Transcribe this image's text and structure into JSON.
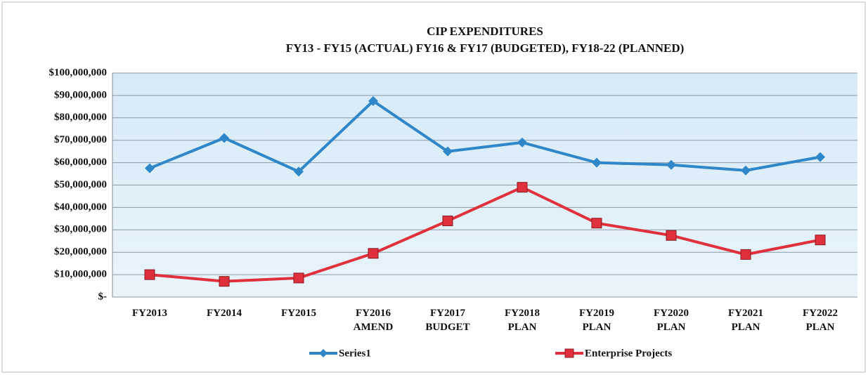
{
  "chart_data": {
    "type": "line",
    "title": "CIP EXPENDITURES",
    "subtitle": "FY13 - FY15 (ACTUAL) FY16 & FY17 (BUDGETED), FY18-22 (PLANNED)",
    "categories": [
      [
        "FY2013"
      ],
      [
        "FY2014"
      ],
      [
        "FY2015"
      ],
      [
        "FY2016",
        "AMEND"
      ],
      [
        "FY2017",
        "BUDGET"
      ],
      [
        "FY2018",
        "PLAN"
      ],
      [
        "FY2019",
        "PLAN"
      ],
      [
        "FY2020",
        "PLAN"
      ],
      [
        "FY2021",
        "PLAN"
      ],
      [
        "FY2022",
        "PLAN"
      ]
    ],
    "series": [
      {
        "name": "Series1",
        "color": "#2f86c9",
        "marker": "diamond",
        "values": [
          57500000,
          71000000,
          56000000,
          87500000,
          65000000,
          69000000,
          60000000,
          59000000,
          56500000,
          62500000
        ]
      },
      {
        "name": "Enterprise Projects",
        "color": "#e0303c",
        "marker": "square",
        "values": [
          10000000,
          7000000,
          8500000,
          19500000,
          34000000,
          49000000,
          33000000,
          27500000,
          19000000,
          25500000
        ]
      }
    ],
    "ylim": [
      0,
      100000000
    ],
    "yticks": [
      {
        "value": 0,
        "label": "$-"
      },
      {
        "value": 10000000,
        "label": "$10,000,000"
      },
      {
        "value": 20000000,
        "label": "$20,000,000"
      },
      {
        "value": 30000000,
        "label": "$30,000,000"
      },
      {
        "value": 40000000,
        "label": "$40,000,000"
      },
      {
        "value": 50000000,
        "label": "$50,000,000"
      },
      {
        "value": 60000000,
        "label": "$60,000,000"
      },
      {
        "value": 70000000,
        "label": "$70,000,000"
      },
      {
        "value": 80000000,
        "label": "$80,000,000"
      },
      {
        "value": 90000000,
        "label": "$90,000,000"
      },
      {
        "value": 100000000,
        "label": "$100,000,000"
      }
    ],
    "grid": true,
    "legend": "bottom"
  }
}
